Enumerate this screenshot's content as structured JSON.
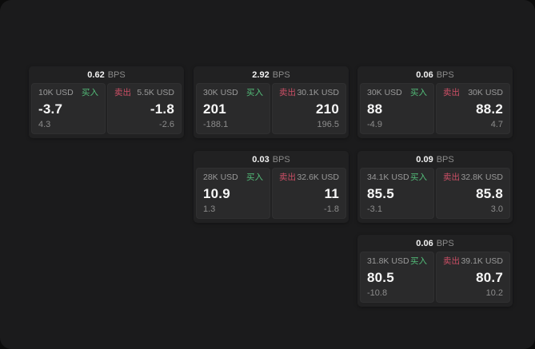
{
  "labels": {
    "buy": "买入",
    "sell": "卖出",
    "bps": "BPS"
  },
  "colors": {
    "window_bg": "#1b1b1c",
    "card_bg": "#212122",
    "panel_bg": "#2a2a2b",
    "buy_green": "#53bd79",
    "sell_red": "#cc4f66",
    "text_primary": "#f7f7f7",
    "text_muted": "#9a9a9a"
  },
  "cards": [
    {
      "bps": "0.62",
      "buy": {
        "amount": "10K USD",
        "price": "-3.7",
        "delta": "4.3"
      },
      "sell": {
        "amount": "5.5K USD",
        "price": "-1.8",
        "delta": "-2.6"
      }
    },
    {
      "bps": "2.92",
      "buy": {
        "amount": "30K USD",
        "price": "201",
        "delta": "-188.1"
      },
      "sell": {
        "amount": "30.1K USD",
        "price": "210",
        "delta": "196.5"
      }
    },
    {
      "bps": "0.06",
      "buy": {
        "amount": "30K USD",
        "price": "88",
        "delta": "-4.9"
      },
      "sell": {
        "amount": "30K USD",
        "price": "88.2",
        "delta": "4.7"
      }
    },
    {
      "bps": "0.03",
      "buy": {
        "amount": "28K USD",
        "price": "10.9",
        "delta": "1.3"
      },
      "sell": {
        "amount": "32.6K USD",
        "price": "11",
        "delta": "-1.8"
      }
    },
    {
      "bps": "0.09",
      "buy": {
        "amount": "34.1K USD",
        "price": "85.5",
        "delta": "-3.1"
      },
      "sell": {
        "amount": "32.8K USD",
        "price": "85.8",
        "delta": "3.0"
      }
    },
    {
      "bps": "0.06",
      "buy": {
        "amount": "31.8K USD",
        "price": "80.5",
        "delta": "-10.8"
      },
      "sell": {
        "amount": "39.1K USD",
        "price": "80.7",
        "delta": "10.2"
      }
    }
  ]
}
